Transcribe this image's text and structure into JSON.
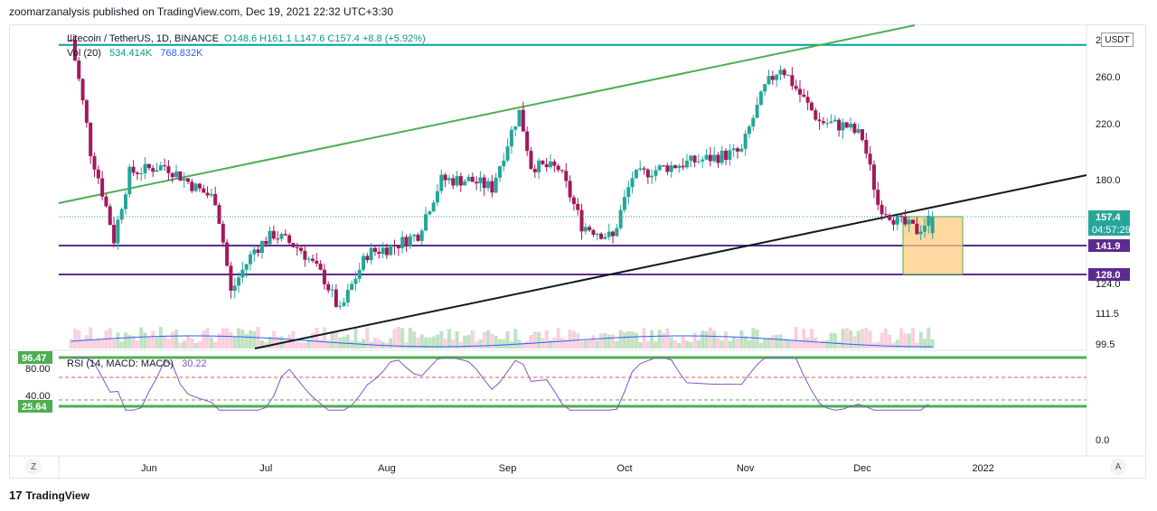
{
  "header": {
    "publisher_line": "zoomarzanalysis published on TradingView.com, Dec 19, 2021 22:32 UTC+3:30"
  },
  "legend": {
    "symbol": "Litecoin / TetherUS, 1D, BINANCE",
    "ohlc": "O148.6  H161.1  L147.6  C157.4  +8.8 (+5.92%)",
    "vol_label": "Vol (20)",
    "vol_value": "534.414K",
    "vol_ma": "768.832K",
    "rsi_label": "RSI (14, MACD: MACD)",
    "rsi_value": "30.22"
  },
  "currency": "USDT",
  "price_axis": {
    "ticks": [
      "260.0",
      "220.0",
      "180.0",
      "124.0",
      "111.5",
      "99.5"
    ],
    "top_tick_partial": "2"
  },
  "price_badges": [
    {
      "label": "157.4",
      "sub": "04:57:29",
      "color": "#26a69a"
    },
    {
      "label": "141.9",
      "color": "#5b2c8f"
    },
    {
      "label": "128.0",
      "color": "#5b2c8f"
    }
  ],
  "rsi_axis": {
    "ticks": [
      "80.00",
      "40.00",
      "0.0"
    ],
    "badges": [
      "96.47",
      "25.64"
    ]
  },
  "time_axis": {
    "labels": [
      "Jun",
      "Jul",
      "Aug",
      "Sep",
      "Oct",
      "Nov",
      "Dec",
      "2022"
    ]
  },
  "corner_buttons": {
    "left": "Z",
    "right": "A"
  },
  "footer": {
    "brand": "TradingView"
  },
  "colors": {
    "up": "#26a69a",
    "down": "#ef5350",
    "candle_body_down": "#a3185c",
    "trend_green": "#4caf50",
    "resistance_teal": "#00a3a3",
    "support_purple": "#5b2c8f",
    "rsi_line": "#7e57c2",
    "vol_ma_line": "#2962ff",
    "box_fill": "#ffcc80"
  },
  "chart_data": {
    "type": "candlestick",
    "symbol": "Litecoin / TetherUS",
    "interval": "1D",
    "exchange": "BINANCE",
    "last_ohlc": {
      "open": 148.6,
      "high": 161.1,
      "low": 147.6,
      "close": 157.4,
      "change": 8.8,
      "change_pct": 5.92
    },
    "horizontal_levels": [
      {
        "value": 290,
        "color": "#00a3a3"
      },
      {
        "value": 141.9,
        "color": "#5b2c8f"
      },
      {
        "value": 128.0,
        "color": "#5b2c8f"
      }
    ],
    "trendlines": [
      {
        "from": [
          "2021-05-14",
          168
        ],
        "to": [
          "2022-01-02",
          300
        ],
        "color": "#4caf50"
      },
      {
        "from": [
          "2021-06-23",
          95
        ],
        "to": [
          "2022-01-02",
          183
        ],
        "color": "#131722"
      }
    ],
    "rsi": {
      "last": 30.22,
      "levels": [
        96.47,
        25.64
      ]
    },
    "volume": {
      "last": 534.414,
      "ma20": 768.832,
      "unit": "K"
    },
    "close_series": [
      {
        "date": "2021-05-12",
        "close": 295
      },
      {
        "date": "2021-05-17",
        "close": 200
      },
      {
        "date": "2021-05-23",
        "close": 145
      },
      {
        "date": "2021-05-27",
        "close": 185
      },
      {
        "date": "2021-06-05",
        "close": 190
      },
      {
        "date": "2021-06-13",
        "close": 175
      },
      {
        "date": "2021-06-18",
        "close": 168
      },
      {
        "date": "2021-06-22",
        "close": 120
      },
      {
        "date": "2021-06-28",
        "close": 140
      },
      {
        "date": "2021-07-03",
        "close": 148
      },
      {
        "date": "2021-07-10",
        "close": 140
      },
      {
        "date": "2021-07-16",
        "close": 126
      },
      {
        "date": "2021-07-20",
        "close": 112
      },
      {
        "date": "2021-07-27",
        "close": 138
      },
      {
        "date": "2021-08-03",
        "close": 142
      },
      {
        "date": "2021-08-09",
        "close": 148
      },
      {
        "date": "2021-08-15",
        "close": 180
      },
      {
        "date": "2021-08-22",
        "close": 180
      },
      {
        "date": "2021-08-28",
        "close": 175
      },
      {
        "date": "2021-09-04",
        "close": 230
      },
      {
        "date": "2021-09-07",
        "close": 190
      },
      {
        "date": "2021-09-14",
        "close": 188
      },
      {
        "date": "2021-09-20",
        "close": 153
      },
      {
        "date": "2021-09-28",
        "close": 146
      },
      {
        "date": "2021-10-03",
        "close": 182
      },
      {
        "date": "2021-10-10",
        "close": 188
      },
      {
        "date": "2021-10-17",
        "close": 192
      },
      {
        "date": "2021-10-24",
        "close": 196
      },
      {
        "date": "2021-10-31",
        "close": 200
      },
      {
        "date": "2021-11-06",
        "close": 250
      },
      {
        "date": "2021-11-10",
        "close": 270
      },
      {
        "date": "2021-11-15",
        "close": 245
      },
      {
        "date": "2021-11-20",
        "close": 222
      },
      {
        "date": "2021-11-27",
        "close": 218
      },
      {
        "date": "2021-12-01",
        "close": 210
      },
      {
        "date": "2021-12-05",
        "close": 165
      },
      {
        "date": "2021-12-10",
        "close": 155
      },
      {
        "date": "2021-12-15",
        "close": 150
      },
      {
        "date": "2021-12-19",
        "close": 157.4
      }
    ]
  }
}
